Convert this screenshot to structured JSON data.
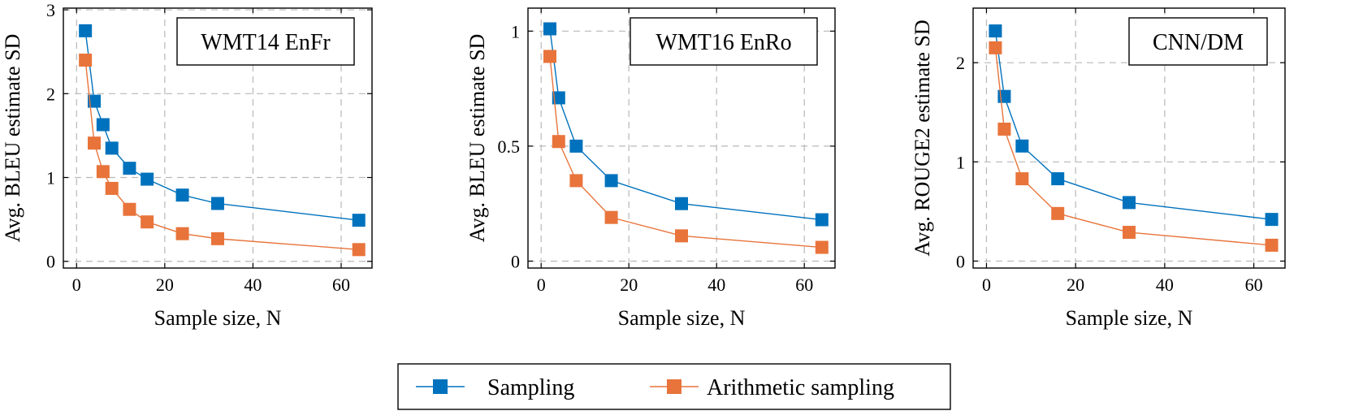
{
  "chart_data": [
    {
      "type": "line",
      "title": "WMT14 EnFr",
      "xlabel": "Sample size, N",
      "ylabel": "Avg. BLEU estimate SD",
      "xlim": [
        -3,
        67
      ],
      "ylim": [
        -0.08,
        3.02
      ],
      "xticks": [
        0,
        20,
        40,
        60
      ],
      "yticks": [
        0,
        1,
        2,
        3
      ],
      "ytick_labels": [
        "0",
        "1",
        "2",
        "3"
      ],
      "grid": true,
      "series": [
        {
          "name": "Sampling",
          "color": "#0072bd",
          "x": [
            2,
            4,
            6,
            8,
            12,
            16,
            24,
            32,
            64
          ],
          "y": [
            2.75,
            1.91,
            1.63,
            1.35,
            1.11,
            0.98,
            0.79,
            0.69,
            0.49
          ]
        },
        {
          "name": "Arithmetic sampling",
          "color": "#e8743b",
          "x": [
            2,
            4,
            6,
            8,
            12,
            16,
            24,
            32,
            64
          ],
          "y": [
            2.4,
            1.41,
            1.07,
            0.87,
            0.62,
            0.47,
            0.33,
            0.27,
            0.14
          ]
        }
      ]
    },
    {
      "type": "line",
      "title": "WMT16 EnRo",
      "xlabel": "Sample size, N",
      "ylabel": "Avg. BLEU estimate SD",
      "xlim": [
        -3,
        67
      ],
      "ylim": [
        -0.03,
        1.1
      ],
      "xticks": [
        0,
        20,
        40,
        60
      ],
      "yticks": [
        0,
        0.5,
        1
      ],
      "ytick_labels": [
        "0",
        "0.5",
        "1"
      ],
      "grid": true,
      "series": [
        {
          "name": "Sampling",
          "color": "#0072bd",
          "x": [
            2,
            4,
            8,
            16,
            32,
            64
          ],
          "y": [
            1.01,
            0.71,
            0.5,
            0.35,
            0.25,
            0.18
          ]
        },
        {
          "name": "Arithmetic sampling",
          "color": "#e8743b",
          "x": [
            2,
            4,
            8,
            16,
            32,
            64
          ],
          "y": [
            0.89,
            0.52,
            0.35,
            0.19,
            0.11,
            0.06
          ]
        }
      ]
    },
    {
      "type": "line",
      "title": "CNN/DM",
      "xlabel": "Sample size, N",
      "ylabel": "Avg. ROUGE2 estimate SD",
      "xlim": [
        -3,
        67
      ],
      "ylim": [
        -0.07,
        2.55
      ],
      "xticks": [
        0,
        20,
        40,
        60
      ],
      "yticks": [
        0,
        1,
        2
      ],
      "ytick_labels": [
        "0",
        "1",
        "2"
      ],
      "grid": true,
      "series": [
        {
          "name": "Sampling",
          "color": "#0072bd",
          "x": [
            2,
            4,
            8,
            16,
            32,
            64
          ],
          "y": [
            2.32,
            1.66,
            1.16,
            0.83,
            0.59,
            0.42
          ]
        },
        {
          "name": "Arithmetic sampling",
          "color": "#e8743b",
          "x": [
            2,
            4,
            8,
            16,
            32,
            64
          ],
          "y": [
            2.15,
            1.33,
            0.83,
            0.48,
            0.29,
            0.16
          ]
        }
      ]
    }
  ],
  "legend": {
    "items": [
      {
        "label": "Sampling",
        "color": "#0072bd"
      },
      {
        "label": "Arithmetic sampling",
        "color": "#e8743b"
      }
    ],
    "position": "bottom-center"
  }
}
